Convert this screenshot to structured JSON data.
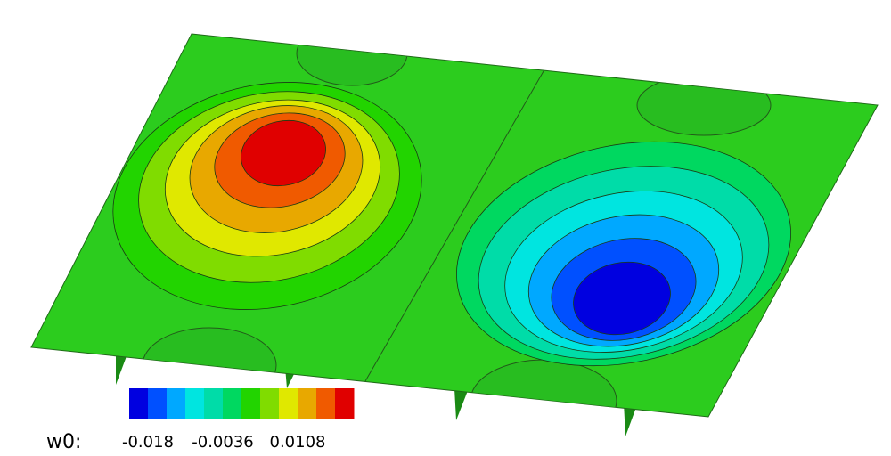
{
  "chart_data": {
    "type": "contour",
    "colorbar": {
      "label": "w0:",
      "clim": [
        -0.0216,
        0.0216
      ],
      "ticks": [
        -0.018,
        -0.0036,
        0.0108
      ],
      "colors": [
        "#0000e0",
        "#0050ff",
        "#00a8ff",
        "#00e5e0",
        "#00dca8",
        "#00d860",
        "#22d400",
        "#80dc00",
        "#e0e800",
        "#e8a800",
        "#f05a00",
        "#e00000"
      ]
    }
  }
}
